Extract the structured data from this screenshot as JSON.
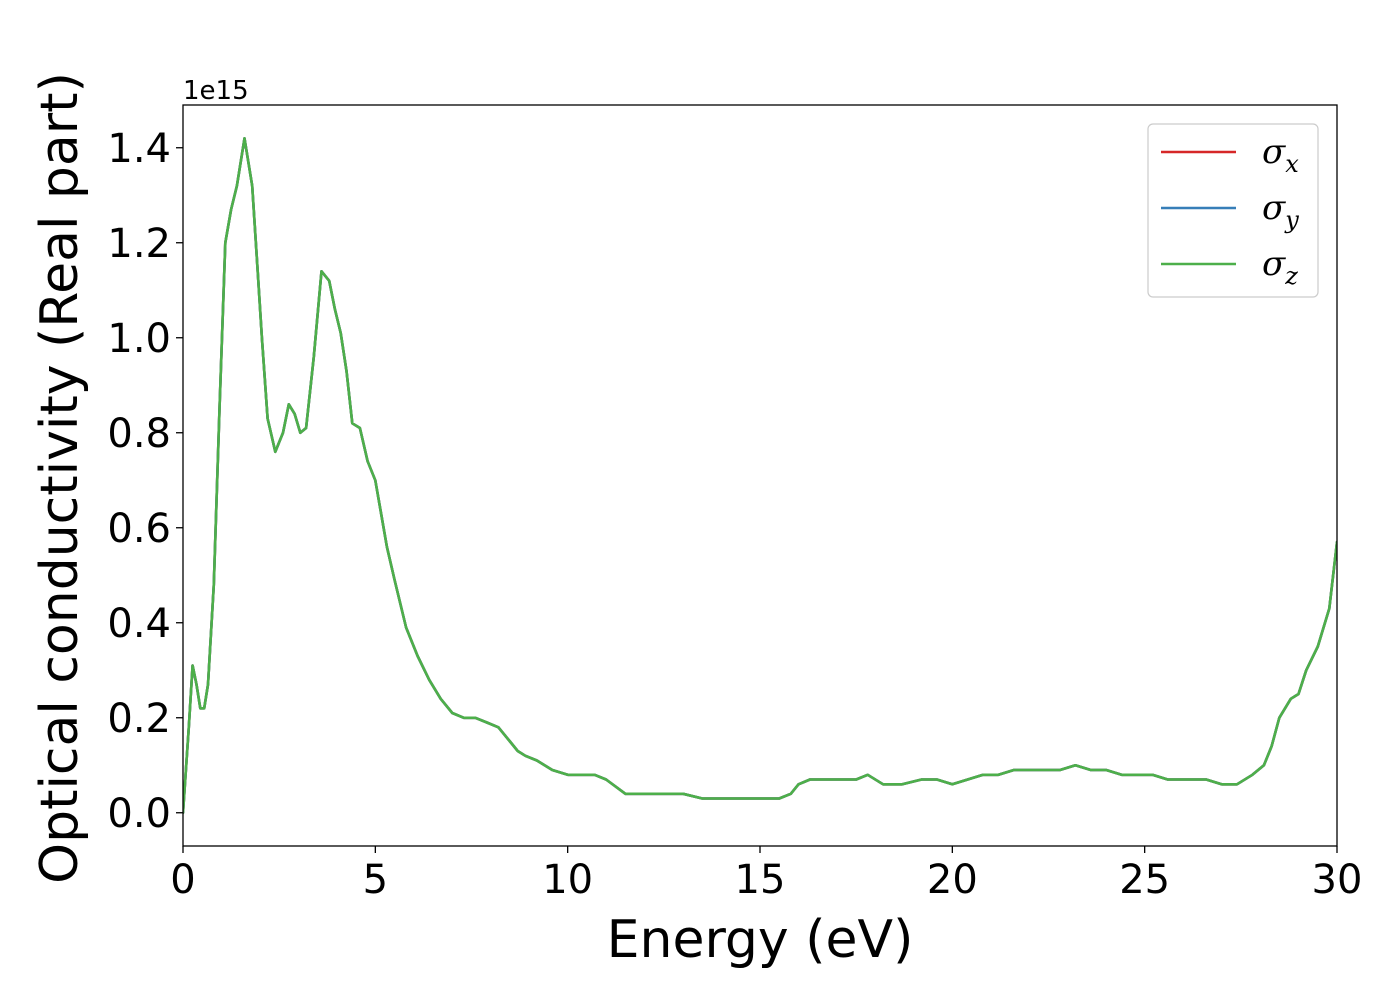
{
  "chart_data": {
    "type": "line",
    "xlabel": "Energy (eV)",
    "ylabel": "Optical conductivity (Real part)",
    "y_offset_label": "1e15",
    "xlim": [
      0,
      30
    ],
    "ylim": [
      -0.07,
      1.49
    ],
    "x_ticks": [
      0,
      5,
      10,
      15,
      20,
      25,
      30
    ],
    "x_tick_labels": [
      "0",
      "5",
      "10",
      "15",
      "20",
      "25",
      "30"
    ],
    "y_ticks": [
      0.0,
      0.2,
      0.4,
      0.6,
      0.8,
      1.0,
      1.2,
      1.4
    ],
    "y_tick_labels": [
      "0.0",
      "0.2",
      "0.4",
      "0.6",
      "0.8",
      "1.0",
      "1.2",
      "1.4"
    ],
    "grid": false,
    "legend_position": "top-right",
    "x": [
      0,
      0.15,
      0.25,
      0.35,
      0.45,
      0.55,
      0.65,
      0.8,
      0.95,
      1.1,
      1.25,
      1.4,
      1.6,
      1.8,
      1.95,
      2.05,
      2.2,
      2.4,
      2.6,
      2.75,
      2.9,
      3.05,
      3.2,
      3.4,
      3.6,
      3.8,
      3.95,
      4.1,
      4.25,
      4.4,
      4.6,
      4.8,
      5.0,
      5.15,
      5.3,
      5.5,
      5.8,
      6.1,
      6.4,
      6.7,
      7.0,
      7.3,
      7.6,
      7.9,
      8.2,
      8.5,
      8.7,
      8.9,
      9.2,
      9.6,
      10.0,
      10.4,
      10.7,
      11.0,
      11.5,
      12.0,
      12.5,
      13.0,
      13.5,
      14.0,
      14.5,
      15.0,
      15.5,
      15.8,
      16.0,
      16.3,
      16.7,
      17.0,
      17.5,
      17.8,
      18.2,
      18.7,
      19.2,
      19.6,
      20.0,
      20.4,
      20.8,
      21.2,
      21.6,
      22.0,
      22.4,
      22.8,
      23.2,
      23.6,
      24.0,
      24.4,
      24.8,
      25.2,
      25.6,
      26.0,
      26.3,
      26.6,
      27.0,
      27.4,
      27.8,
      28.1,
      28.3,
      28.5,
      28.8,
      29.0,
      29.2,
      29.5,
      29.8,
      30.0
    ],
    "series": [
      {
        "name": "σ_x",
        "legend_base": "σ",
        "legend_sub": "x",
        "color": "#d62728",
        "y": [
          0.0,
          0.18,
          0.31,
          0.27,
          0.22,
          0.22,
          0.27,
          0.48,
          0.85,
          1.2,
          1.27,
          1.32,
          1.42,
          1.32,
          1.13,
          1.0,
          0.83,
          0.76,
          0.8,
          0.86,
          0.84,
          0.8,
          0.81,
          0.96,
          1.14,
          1.12,
          1.06,
          1.01,
          0.93,
          0.82,
          0.81,
          0.74,
          0.7,
          0.63,
          0.56,
          0.49,
          0.39,
          0.33,
          0.28,
          0.24,
          0.21,
          0.2,
          0.2,
          0.19,
          0.18,
          0.15,
          0.13,
          0.12,
          0.11,
          0.09,
          0.08,
          0.08,
          0.08,
          0.07,
          0.04,
          0.04,
          0.04,
          0.04,
          0.03,
          0.03,
          0.03,
          0.03,
          0.03,
          0.04,
          0.06,
          0.07,
          0.07,
          0.07,
          0.07,
          0.08,
          0.06,
          0.06,
          0.07,
          0.07,
          0.06,
          0.07,
          0.08,
          0.08,
          0.09,
          0.09,
          0.09,
          0.09,
          0.1,
          0.09,
          0.09,
          0.08,
          0.08,
          0.08,
          0.07,
          0.07,
          0.07,
          0.07,
          0.06,
          0.06,
          0.08,
          0.1,
          0.14,
          0.2,
          0.24,
          0.25,
          0.3,
          0.35,
          0.43,
          0.57
        ]
      },
      {
        "name": "σ_y",
        "legend_base": "σ",
        "legend_sub": "y",
        "color": "#377eb8",
        "y": [
          0.0,
          0.18,
          0.31,
          0.27,
          0.22,
          0.22,
          0.27,
          0.48,
          0.85,
          1.2,
          1.27,
          1.32,
          1.42,
          1.32,
          1.13,
          1.0,
          0.83,
          0.76,
          0.8,
          0.86,
          0.84,
          0.8,
          0.81,
          0.96,
          1.14,
          1.12,
          1.06,
          1.01,
          0.93,
          0.82,
          0.81,
          0.74,
          0.7,
          0.63,
          0.56,
          0.49,
          0.39,
          0.33,
          0.28,
          0.24,
          0.21,
          0.2,
          0.2,
          0.19,
          0.18,
          0.15,
          0.13,
          0.12,
          0.11,
          0.09,
          0.08,
          0.08,
          0.08,
          0.07,
          0.04,
          0.04,
          0.04,
          0.04,
          0.03,
          0.03,
          0.03,
          0.03,
          0.03,
          0.04,
          0.06,
          0.07,
          0.07,
          0.07,
          0.07,
          0.08,
          0.06,
          0.06,
          0.07,
          0.07,
          0.06,
          0.07,
          0.08,
          0.08,
          0.09,
          0.09,
          0.09,
          0.09,
          0.1,
          0.09,
          0.09,
          0.08,
          0.08,
          0.08,
          0.07,
          0.07,
          0.07,
          0.07,
          0.06,
          0.06,
          0.08,
          0.1,
          0.14,
          0.2,
          0.24,
          0.25,
          0.3,
          0.35,
          0.43,
          0.57
        ]
      },
      {
        "name": "σ_z",
        "legend_base": "σ",
        "legend_sub": "z",
        "color": "#4daf4a",
        "y": [
          0.0,
          0.18,
          0.31,
          0.27,
          0.22,
          0.22,
          0.27,
          0.48,
          0.85,
          1.2,
          1.27,
          1.32,
          1.42,
          1.32,
          1.13,
          1.0,
          0.83,
          0.76,
          0.8,
          0.86,
          0.84,
          0.8,
          0.81,
          0.96,
          1.14,
          1.12,
          1.06,
          1.01,
          0.93,
          0.82,
          0.81,
          0.74,
          0.7,
          0.63,
          0.56,
          0.49,
          0.39,
          0.33,
          0.28,
          0.24,
          0.21,
          0.2,
          0.2,
          0.19,
          0.18,
          0.15,
          0.13,
          0.12,
          0.11,
          0.09,
          0.08,
          0.08,
          0.08,
          0.07,
          0.04,
          0.04,
          0.04,
          0.04,
          0.03,
          0.03,
          0.03,
          0.03,
          0.03,
          0.04,
          0.06,
          0.07,
          0.07,
          0.07,
          0.07,
          0.08,
          0.06,
          0.06,
          0.07,
          0.07,
          0.06,
          0.07,
          0.08,
          0.08,
          0.09,
          0.09,
          0.09,
          0.09,
          0.1,
          0.09,
          0.09,
          0.08,
          0.08,
          0.08,
          0.07,
          0.07,
          0.07,
          0.07,
          0.06,
          0.06,
          0.08,
          0.1,
          0.14,
          0.2,
          0.24,
          0.25,
          0.3,
          0.35,
          0.43,
          0.57
        ]
      }
    ]
  }
}
